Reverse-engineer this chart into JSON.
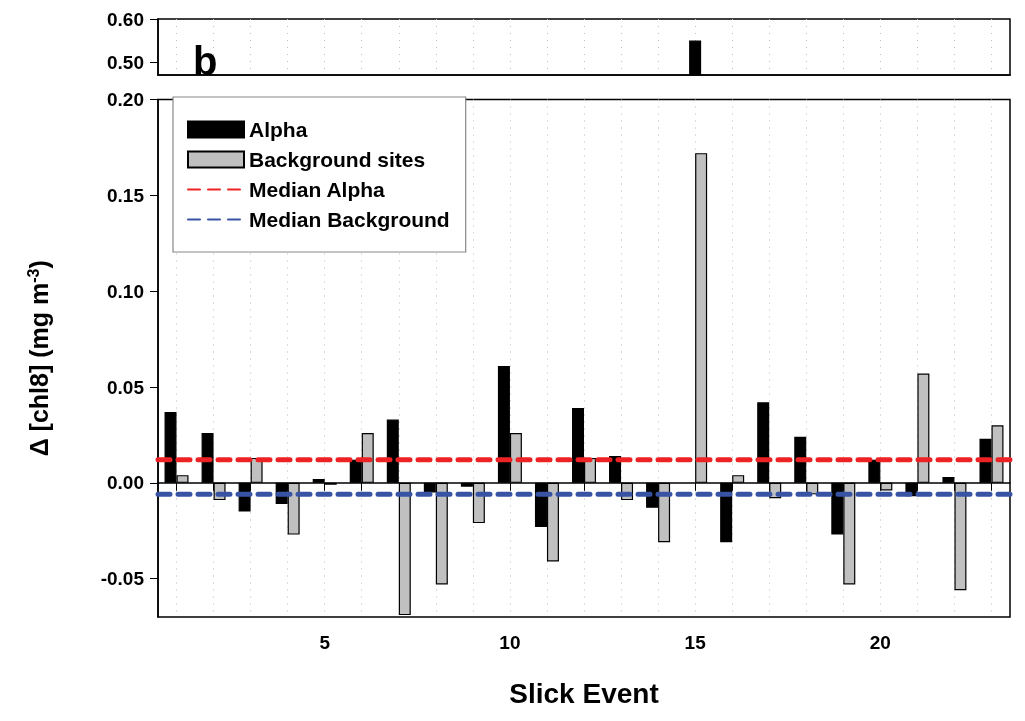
{
  "chart_data": [
    {
      "type": "bar",
      "title": "b",
      "x": [
        15
      ],
      "series": [
        {
          "color": "#000000",
          "values": [
            0.55
          ]
        }
      ],
      "xlim": [
        0.5,
        23.5
      ],
      "xticks": [
        {
          "value": 1,
          "label": null
        },
        {
          "value": 2,
          "label": null
        },
        {
          "value": 3,
          "label": null
        },
        {
          "value": 4,
          "label": null
        },
        5,
        {
          "value": 6,
          "label": null
        },
        {
          "value": 7,
          "label": null
        },
        {
          "value": 8,
          "label": null
        },
        {
          "value": 9,
          "label": null
        },
        10,
        {
          "value": 11,
          "label": null
        },
        {
          "value": 12,
          "label": null
        },
        {
          "value": 13,
          "label": null
        },
        {
          "value": 14,
          "label": null
        },
        15,
        {
          "value": 16,
          "label": null
        },
        {
          "value": 17,
          "label": null
        },
        {
          "value": 18,
          "label": null
        },
        {
          "value": 19,
          "label": null
        },
        20,
        {
          "value": 21,
          "label": null
        },
        {
          "value": 22,
          "label": null
        },
        {
          "value": 23,
          "label": null
        }
      ],
      "ylim": [
        0.47,
        0.6
      ],
      "yticks": [
        {
          "value": 0.5,
          "label": "0.50"
        },
        {
          "value": 0.6,
          "label": "0.60"
        }
      ],
      "grid": "x",
      "legend": false,
      "tick_labels": "y"
    },
    {
      "type": "bar",
      "xlabel": "Slick Event",
      "ylabel": "Δ [chl8] (mg m$^{-3}$)",
      "x": [
        1,
        2,
        3,
        4,
        5,
        6,
        7,
        8,
        9,
        10,
        11,
        12,
        13,
        14,
        15,
        16,
        17,
        18,
        19,
        20,
        21,
        22,
        23
      ],
      "series": [
        {
          "name": "Alpha",
          "color": "#000000",
          "values": [
            0.037,
            0.026,
            -0.015,
            -0.011,
            0.002,
            0.012,
            0.033,
            -0.005,
            -0.002,
            0.061,
            -0.023,
            0.039,
            0.014,
            -0.013,
            null,
            -0.031,
            0.042,
            0.024,
            -0.027,
            0.012,
            -0.007,
            0.003,
            0.023
          ]
        },
        {
          "name": "Background sites",
          "color": "#c0c0c0",
          "values": [
            0.004,
            -0.009,
            0.013,
            -0.027,
            -0.001,
            0.026,
            -0.069,
            -0.053,
            -0.021,
            0.026,
            -0.041,
            0.013,
            -0.009,
            -0.031,
            0.172,
            0.004,
            -0.008,
            -0.006,
            -0.053,
            -0.004,
            0.057,
            -0.056,
            0.03
          ]
        }
      ],
      "ref_lines": [
        {
          "axis": "y",
          "value": 0.012,
          "label": "Median Alpha",
          "color": "#ee2224",
          "line_style": "dashed"
        },
        {
          "axis": "y",
          "value": -0.006,
          "label": "Median Background",
          "color": "#3953a4",
          "line_style": "dashed"
        }
      ],
      "xlim": [
        0.5,
        23.5
      ],
      "xticks": [
        {
          "value": 1,
          "label": null
        },
        {
          "value": 2,
          "label": null
        },
        {
          "value": 3,
          "label": null
        },
        {
          "value": 4,
          "label": null
        },
        5,
        {
          "value": 6,
          "label": null
        },
        {
          "value": 7,
          "label": null
        },
        {
          "value": 8,
          "label": null
        },
        {
          "value": 9,
          "label": null
        },
        10,
        {
          "value": 11,
          "label": null
        },
        {
          "value": 12,
          "label": null
        },
        {
          "value": 13,
          "label": null
        },
        {
          "value": 14,
          "label": null
        },
        15,
        {
          "value": 16,
          "label": null
        },
        {
          "value": 17,
          "label": null
        },
        {
          "value": 18,
          "label": null
        },
        {
          "value": 19,
          "label": null
        },
        20,
        {
          "value": 21,
          "label": null
        },
        {
          "value": 22,
          "label": null
        },
        {
          "value": 23,
          "label": null
        }
      ],
      "ylim": [
        -0.07,
        0.2
      ],
      "yticks": [
        {
          "value": -0.05,
          "label": "-0.05"
        },
        {
          "value": 0,
          "label": "0.00"
        },
        {
          "value": 0.05,
          "label": "0.05"
        },
        {
          "value": 0.1,
          "label": "0.10"
        },
        {
          "value": 0.15,
          "label": "0.15"
        },
        {
          "value": 0.2,
          "label": "0.20"
        }
      ],
      "grid": "x",
      "legend": "top left"
    }
  ]
}
